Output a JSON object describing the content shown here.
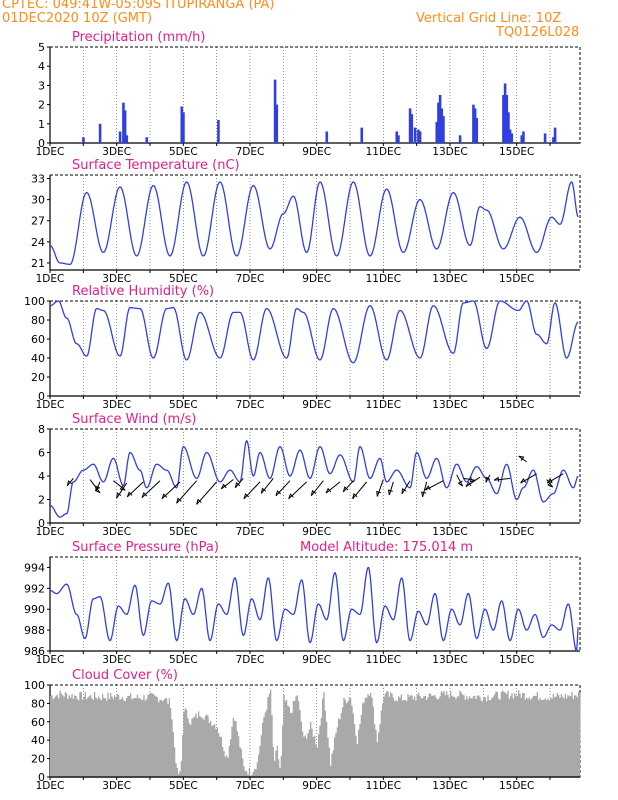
{
  "header": {
    "left_line1": "CPTEC:   049:41W-05:09S   ITUPIRANGA (PA)",
    "left_line2": "01DEC2020 10Z (GMT)",
    "right_line1": "Vertical Grid Line: 10Z",
    "right_line2": "TQ0126L028"
  },
  "colors": {
    "header": "#ff8c1a",
    "title": "#e0208a",
    "line": "#3040e0",
    "cloud": "#a9a9a9",
    "wind_arrow": "#000000"
  },
  "x_tick_labels": [
    "1DEC",
    "3DEC",
    "5DEC",
    "7DEC",
    "9DEC",
    "11DEC",
    "13DEC",
    "15DEC"
  ],
  "chart_data": [
    {
      "type": "bar",
      "title": "Precipitation (mm/h)",
      "ylim": [
        0,
        5
      ],
      "yticks": [
        0,
        1,
        2,
        3,
        4,
        5
      ],
      "x_unit": "day offset from 01DEC2020 10Z",
      "bars": [
        [
          1.0,
          0.3
        ],
        [
          1.5,
          1.0
        ],
        [
          2.1,
          0.6
        ],
        [
          2.2,
          2.1
        ],
        [
          2.25,
          1.7
        ],
        [
          2.3,
          0.4
        ],
        [
          2.9,
          0.3
        ],
        [
          3.95,
          1.9
        ],
        [
          4.0,
          1.6
        ],
        [
          5.05,
          1.2
        ],
        [
          6.75,
          3.3
        ],
        [
          6.8,
          2.0
        ],
        [
          8.3,
          0.6
        ],
        [
          9.35,
          0.8
        ],
        [
          10.4,
          0.6
        ],
        [
          10.45,
          0.4
        ],
        [
          10.8,
          1.8
        ],
        [
          10.85,
          1.5
        ],
        [
          10.95,
          0.8
        ],
        [
          11.05,
          0.7
        ],
        [
          11.1,
          0.6
        ],
        [
          11.6,
          1.1
        ],
        [
          11.65,
          2.1
        ],
        [
          11.7,
          2.5
        ],
        [
          11.75,
          1.8
        ],
        [
          11.8,
          1.4
        ],
        [
          12.3,
          0.4
        ],
        [
          12.7,
          2.0
        ],
        [
          12.75,
          1.8
        ],
        [
          12.8,
          1.3
        ],
        [
          13.6,
          2.5
        ],
        [
          13.65,
          3.1
        ],
        [
          13.7,
          2.5
        ],
        [
          13.75,
          1.6
        ],
        [
          13.8,
          0.7
        ],
        [
          13.85,
          0.5
        ],
        [
          14.15,
          0.4
        ],
        [
          14.2,
          0.6
        ],
        [
          14.85,
          0.5
        ],
        [
          15.1,
          0.3
        ],
        [
          15.15,
          0.8
        ]
      ]
    },
    {
      "type": "line",
      "title": "Surface Temperature (nC)",
      "ylim": [
        20,
        33.5
      ],
      "yticks": [
        21,
        24,
        27,
        30,
        33
      ],
      "x_unit": "day offset from 01DEC2020 10Z",
      "peaks": [
        [
          0.0,
          23.5
        ],
        [
          0.3,
          21.0
        ],
        [
          0.6,
          20.8
        ],
        [
          1.1,
          31.0
        ],
        [
          1.6,
          22.5
        ],
        [
          2.1,
          31.8
        ],
        [
          2.6,
          22.0
        ],
        [
          3.1,
          32.0
        ],
        [
          3.6,
          22.0
        ],
        [
          4.1,
          32.5
        ],
        [
          4.6,
          22.0
        ],
        [
          5.1,
          32.5
        ],
        [
          5.6,
          22.0
        ],
        [
          6.1,
          32.0
        ],
        [
          6.6,
          23.0
        ],
        [
          7.0,
          28.0
        ],
        [
          7.3,
          30.5
        ],
        [
          7.7,
          22.5
        ],
        [
          8.1,
          32.5
        ],
        [
          8.6,
          22.0
        ],
        [
          9.1,
          32.5
        ],
        [
          9.6,
          22.0
        ],
        [
          10.1,
          31.5
        ],
        [
          10.6,
          22.5
        ],
        [
          11.1,
          30.0
        ],
        [
          11.6,
          23.0
        ],
        [
          12.1,
          31.0
        ],
        [
          12.6,
          23.5
        ],
        [
          12.9,
          29.0
        ],
        [
          13.1,
          28.5
        ],
        [
          13.6,
          23.0
        ],
        [
          14.1,
          27.5
        ],
        [
          14.6,
          22.5
        ],
        [
          15.05,
          27.5
        ],
        [
          15.3,
          26.5
        ],
        [
          15.65,
          32.5
        ],
        [
          15.85,
          27.5
        ]
      ]
    },
    {
      "type": "line",
      "title": "Relative Humidity (%)",
      "ylim": [
        0,
        100
      ],
      "yticks": [
        0,
        20,
        40,
        60,
        80,
        100
      ],
      "x_unit": "day offset from 01DEC2020 10Z",
      "peaks": [
        [
          0.0,
          95
        ],
        [
          0.25,
          100
        ],
        [
          0.5,
          82
        ],
        [
          0.8,
          55
        ],
        [
          1.1,
          42
        ],
        [
          1.4,
          92
        ],
        [
          1.6,
          90
        ],
        [
          2.1,
          42
        ],
        [
          2.4,
          93
        ],
        [
          2.7,
          92
        ],
        [
          3.1,
          40
        ],
        [
          3.5,
          92
        ],
        [
          3.7,
          93
        ],
        [
          4.1,
          38
        ],
        [
          4.5,
          88
        ],
        [
          5.1,
          40
        ],
        [
          5.5,
          88
        ],
        [
          5.7,
          88
        ],
        [
          6.1,
          38
        ],
        [
          6.5,
          92
        ],
        [
          7.1,
          40
        ],
        [
          7.4,
          92
        ],
        [
          7.6,
          88
        ],
        [
          8.1,
          38
        ],
        [
          8.5,
          92
        ],
        [
          9.1,
          35
        ],
        [
          9.6,
          95
        ],
        [
          10.1,
          38
        ],
        [
          10.5,
          90
        ],
        [
          11.1,
          40
        ],
        [
          11.5,
          95
        ],
        [
          12.1,
          45
        ],
        [
          12.4,
          98
        ],
        [
          12.7,
          100
        ],
        [
          13.1,
          50
        ],
        [
          13.5,
          100
        ],
        [
          14.05,
          90
        ],
        [
          14.3,
          100
        ],
        [
          14.6,
          65
        ],
        [
          14.9,
          55
        ],
        [
          15.15,
          98
        ],
        [
          15.5,
          40
        ],
        [
          15.85,
          78
        ]
      ]
    },
    {
      "type": "line",
      "title": "Surface Wind (m/s)",
      "ylim": [
        0,
        8
      ],
      "yticks": [
        0,
        2,
        4,
        6,
        8
      ],
      "x_unit": "day offset from 01DEC2020 10Z",
      "peaks": [
        [
          0.0,
          1.5
        ],
        [
          0.3,
          0.5
        ],
        [
          0.5,
          0.8
        ],
        [
          0.7,
          3.5
        ],
        [
          1.0,
          4.5
        ],
        [
          1.3,
          5.0
        ],
        [
          1.6,
          3.5
        ],
        [
          1.9,
          5.5
        ],
        [
          2.2,
          3.2
        ],
        [
          2.4,
          6.0
        ],
        [
          2.7,
          4.5
        ],
        [
          2.9,
          3.0
        ],
        [
          3.2,
          5.0
        ],
        [
          3.5,
          4.5
        ],
        [
          3.8,
          3.0
        ],
        [
          4.0,
          6.5
        ],
        [
          4.4,
          3.8
        ],
        [
          4.7,
          6.0
        ],
        [
          5.1,
          3.5
        ],
        [
          5.4,
          4.5
        ],
        [
          5.7,
          3.5
        ],
        [
          5.9,
          7.0
        ],
        [
          6.1,
          4.0
        ],
        [
          6.3,
          6.0
        ],
        [
          6.6,
          3.8
        ],
        [
          6.9,
          6.5
        ],
        [
          7.2,
          4.0
        ],
        [
          7.5,
          6.2
        ],
        [
          7.8,
          3.8
        ],
        [
          8.1,
          6.5
        ],
        [
          8.4,
          4.2
        ],
        [
          8.7,
          5.8
        ],
        [
          9.1,
          3.5
        ],
        [
          9.3,
          6.5
        ],
        [
          9.6,
          3.8
        ],
        [
          9.9,
          5.5
        ],
        [
          10.1,
          3.5
        ],
        [
          10.4,
          4.5
        ],
        [
          10.8,
          3.0
        ],
        [
          11.0,
          6.0
        ],
        [
          11.3,
          3.8
        ],
        [
          11.6,
          5.5
        ],
        [
          11.9,
          3.0
        ],
        [
          12.2,
          5.0
        ],
        [
          12.5,
          3.5
        ],
        [
          12.8,
          4.8
        ],
        [
          13.1,
          3.8
        ],
        [
          13.4,
          2.5
        ],
        [
          13.7,
          5.0
        ],
        [
          14.0,
          2.0
        ],
        [
          14.2,
          3.0
        ],
        [
          14.5,
          4.5
        ],
        [
          14.8,
          1.8
        ],
        [
          15.1,
          2.5
        ],
        [
          15.4,
          4.5
        ],
        [
          15.7,
          3.0
        ],
        [
          15.85,
          4.0
        ]
      ],
      "wind_arrows": [
        [
          0.7,
          3.8,
          -0.3,
          -0.4
        ],
        [
          1.2,
          3.7,
          0.5,
          -0.7
        ],
        [
          1.5,
          3.5,
          -0.2,
          -0.5
        ],
        [
          1.9,
          3.6,
          0.6,
          -0.5
        ],
        [
          2.3,
          3.4,
          -0.5,
          -0.8
        ],
        [
          2.8,
          3.5,
          -0.8,
          -0.8
        ],
        [
          3.3,
          3.6,
          -0.9,
          -0.9
        ],
        [
          3.9,
          3.5,
          -0.9,
          -0.9
        ],
        [
          4.4,
          3.6,
          -1.0,
          -1.2
        ],
        [
          5.0,
          3.5,
          -1.0,
          -1.2
        ],
        [
          5.5,
          3.7,
          -0.6,
          -0.5
        ],
        [
          5.8,
          3.8,
          -0.4,
          -0.5
        ],
        [
          6.3,
          3.5,
          -0.8,
          -0.9
        ],
        [
          6.7,
          3.8,
          -0.6,
          -0.8
        ],
        [
          7.2,
          3.6,
          -0.7,
          -0.8
        ],
        [
          7.7,
          3.5,
          -0.9,
          -0.9
        ],
        [
          8.2,
          3.6,
          -0.6,
          -0.8
        ],
        [
          8.7,
          3.5,
          -0.7,
          -0.6
        ],
        [
          9.1,
          3.6,
          -0.5,
          -0.6
        ],
        [
          9.5,
          3.5,
          -0.7,
          -0.9
        ],
        [
          10.0,
          3.7,
          -0.3,
          -0.9
        ],
        [
          10.3,
          3.5,
          -0.2,
          -0.7
        ],
        [
          10.8,
          3.6,
          -0.4,
          -0.7
        ],
        [
          11.3,
          3.5,
          -0.2,
          -0.8
        ],
        [
          11.8,
          3.6,
          -0.9,
          -0.5
        ],
        [
          12.2,
          4.1,
          0.3,
          -0.6
        ],
        [
          12.4,
          3.8,
          0.6,
          -0.1
        ],
        [
          12.9,
          3.9,
          -0.7,
          -0.5
        ],
        [
          13.2,
          4.1,
          -0.2,
          -0.4
        ],
        [
          13.8,
          3.8,
          -0.8,
          -0.1
        ],
        [
          14.3,
          5.2,
          -0.4,
          0.3
        ],
        [
          14.6,
          4.2,
          -0.8,
          -0.5
        ],
        [
          14.9,
          3.7,
          0.3,
          -0.4
        ],
        [
          15.4,
          4.2,
          -0.8,
          -0.5
        ]
      ]
    },
    {
      "type": "line",
      "title": "Surface Pressure (hPa)",
      "annotation": "Model Altitude: 175.014 m",
      "ylim": [
        986,
        995
      ],
      "yticks": [
        986,
        988,
        990,
        992,
        994
      ],
      "x_unit": "day offset from 01DEC2020 10Z",
      "peaks": [
        [
          0.0,
          991.8
        ],
        [
          0.2,
          991.5
        ],
        [
          0.5,
          992.4
        ],
        [
          0.8,
          989.5
        ],
        [
          1.05,
          987.2
        ],
        [
          1.3,
          991.0
        ],
        [
          1.5,
          991.2
        ],
        [
          1.8,
          987.0
        ],
        [
          2.05,
          990.3
        ],
        [
          2.3,
          989.5
        ],
        [
          2.55,
          992.3
        ],
        [
          2.8,
          987.5
        ],
        [
          3.05,
          990.8
        ],
        [
          3.3,
          990.5
        ],
        [
          3.55,
          992.5
        ],
        [
          3.8,
          987.0
        ],
        [
          4.05,
          991.0
        ],
        [
          4.3,
          989.5
        ],
        [
          4.55,
          992.0
        ],
        [
          4.8,
          987.0
        ],
        [
          5.05,
          990.5
        ],
        [
          5.3,
          989.5
        ],
        [
          5.55,
          993.0
        ],
        [
          5.8,
          987.5
        ],
        [
          6.05,
          991.0
        ],
        [
          6.3,
          989.0
        ],
        [
          6.55,
          993.0
        ],
        [
          6.8,
          987.0
        ],
        [
          7.05,
          990.0
        ],
        [
          7.3,
          989.5
        ],
        [
          7.55,
          992.8
        ],
        [
          7.8,
          986.8
        ],
        [
          8.05,
          990.5
        ],
        [
          8.3,
          989.0
        ],
        [
          8.55,
          993.5
        ],
        [
          8.8,
          987.0
        ],
        [
          9.05,
          990.0
        ],
        [
          9.3,
          989.5
        ],
        [
          9.55,
          994.0
        ],
        [
          9.8,
          986.8
        ],
        [
          10.05,
          990.3
        ],
        [
          10.3,
          989.0
        ],
        [
          10.55,
          993.0
        ],
        [
          10.8,
          987.0
        ],
        [
          11.05,
          989.8
        ],
        [
          11.3,
          988.5
        ],
        [
          11.55,
          991.5
        ],
        [
          11.8,
          987.0
        ],
        [
          12.05,
          990.0
        ],
        [
          12.3,
          988.5
        ],
        [
          12.55,
          991.5
        ],
        [
          12.8,
          987.2
        ],
        [
          13.05,
          990.0
        ],
        [
          13.3,
          988.0
        ],
        [
          13.55,
          990.8
        ],
        [
          13.8,
          987.0
        ],
        [
          14.05,
          990.0
        ],
        [
          14.3,
          988.0
        ],
        [
          14.55,
          989.5
        ],
        [
          14.8,
          987.3
        ],
        [
          15.05,
          988.5
        ],
        [
          15.3,
          988.0
        ],
        [
          15.55,
          990.5
        ],
        [
          15.8,
          986.0
        ],
        [
          15.85,
          988.5
        ]
      ]
    },
    {
      "type": "area",
      "title": "Cloud Cover (%)",
      "ylim": [
        0,
        100
      ],
      "yticks": [
        0,
        20,
        40,
        60,
        80,
        100
      ],
      "x_unit": "day offset from 01DEC2020 10Z",
      "x": [
        0.0,
        0.3,
        0.8,
        1.5,
        2.0,
        2.5,
        3.0,
        3.4,
        3.6,
        3.7,
        3.8,
        3.9,
        4.0,
        4.2,
        4.5,
        5.0,
        5.3,
        5.5,
        5.8,
        6.0,
        6.2,
        6.4,
        6.6,
        6.7,
        6.8,
        6.9,
        7.0,
        7.2,
        7.4,
        7.6,
        7.8,
        8.0,
        8.2,
        8.4,
        8.6,
        8.8,
        9.0,
        9.2,
        9.4,
        9.6,
        9.8,
        10.0,
        10.5,
        11.0,
        11.5,
        12.0,
        12.5,
        13.0,
        13.5,
        14.0,
        14.5,
        15.0,
        15.5,
        15.9
      ],
      "values": [
        88,
        90,
        88,
        87,
        88,
        86,
        87,
        85,
        80,
        40,
        5,
        2,
        75,
        60,
        70,
        55,
        20,
        70,
        10,
        5,
        15,
        65,
        95,
        15,
        30,
        5,
        85,
        70,
        90,
        40,
        55,
        35,
        92,
        15,
        55,
        82,
        88,
        40,
        85,
        95,
        40,
        90,
        85,
        87,
        88,
        90,
        88,
        87,
        89,
        90,
        88,
        87,
        88,
        90
      ]
    }
  ]
}
